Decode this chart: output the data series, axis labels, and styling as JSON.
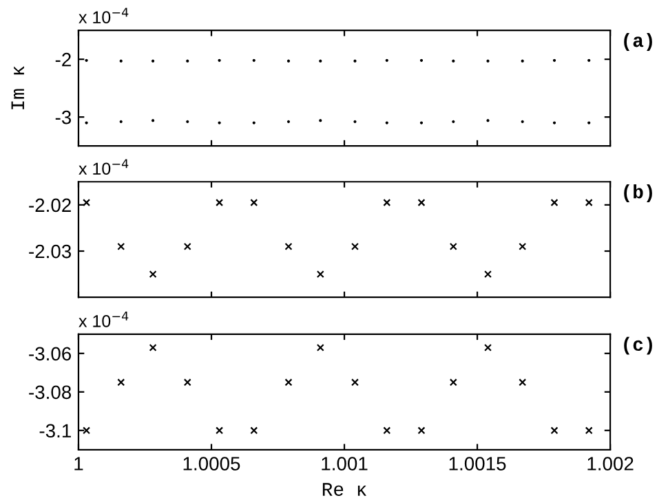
{
  "chart_data": [
    {
      "type": "scatter",
      "ylabel": "Im κ",
      "annotations": [
        "(a)",
        "x 10$^{−4}$"
      ],
      "marker": "circle",
      "tick_labels": "y",
      "grid": false,
      "legend": false,
      "x": [
        1.00003,
        1.00016,
        1.00028,
        1.00041,
        1.00053,
        1.00066,
        1.00079,
        1.00091,
        1.00104,
        1.00116,
        1.00129,
        1.00141,
        1.00154,
        1.00167,
        1.00179,
        1.00192
      ],
      "series": [
        {
          "color": "#000000",
          "values": [
            -2.02,
            -2.03,
            -2.03,
            -2.03,
            -2.02,
            -2.02,
            -2.03,
            -2.03,
            -2.03,
            -2.02,
            -2.02,
            -2.03,
            -2.03,
            -2.03,
            -2.02,
            -2.02
          ]
        },
        {
          "color": "#000000",
          "values": [
            -3.1,
            -3.08,
            -3.06,
            -3.08,
            -3.1,
            -3.1,
            -3.08,
            -3.06,
            -3.08,
            -3.1,
            -3.1,
            -3.08,
            -3.06,
            -3.08,
            -3.1,
            -3.1
          ]
        }
      ],
      "xlim": [
        1,
        1.002
      ],
      "xticks": [
        {
          "value": 1,
          "label": null
        },
        {
          "value": 1.0005,
          "label": null
        },
        {
          "value": 1.001,
          "label": null
        },
        {
          "value": 1.0015,
          "label": null
        },
        {
          "value": 1.002,
          "label": null
        }
      ],
      "ylim": [
        -3.5,
        -1.5
      ],
      "yticks": [
        -3,
        -2
      ]
    },
    {
      "type": "scatter",
      "annotations": [
        "(b)",
        "x 10$^{−4}$"
      ],
      "marker": "cross",
      "tick_labels": "y",
      "grid": false,
      "legend": false,
      "x": [
        1.00003,
        1.00016,
        1.00028,
        1.00041,
        1.00053,
        1.00066,
        1.00079,
        1.00091,
        1.00104,
        1.00116,
        1.00129,
        1.00141,
        1.00154,
        1.00167,
        1.00179,
        1.00192
      ],
      "series": [
        {
          "color": "#000000",
          "values": [
            -2.0195,
            -2.029,
            -2.035,
            -2.029,
            -2.0195,
            -2.0195,
            -2.029,
            -2.035,
            -2.029,
            -2.0195,
            -2.0195,
            -2.029,
            -2.035,
            -2.029,
            -2.0195,
            -2.0195
          ]
        }
      ],
      "xlim": [
        1,
        1.002
      ],
      "xticks": [
        {
          "value": 1,
          "label": null
        },
        {
          "value": 1.0005,
          "label": null
        },
        {
          "value": 1.001,
          "label": null
        },
        {
          "value": 1.0015,
          "label": null
        },
        {
          "value": 1.002,
          "label": null
        }
      ],
      "ylim": [
        -2.04,
        -2.015
      ],
      "yticks": [
        -2.03,
        -2.02
      ]
    },
    {
      "type": "scatter",
      "xlabel": "Re κ",
      "annotations": [
        "(c)",
        "x 10$^{−4}$"
      ],
      "marker": "cross",
      "grid": false,
      "legend": false,
      "x": [
        1.00003,
        1.00016,
        1.00028,
        1.00041,
        1.00053,
        1.00066,
        1.00079,
        1.00091,
        1.00104,
        1.00116,
        1.00129,
        1.00141,
        1.00154,
        1.00167,
        1.00179,
        1.00192
      ],
      "series": [
        {
          "color": "#000000",
          "values": [
            -3.1,
            -3.075,
            -3.057,
            -3.075,
            -3.1,
            -3.1,
            -3.075,
            -3.057,
            -3.075,
            -3.1,
            -3.1,
            -3.075,
            -3.057,
            -3.075,
            -3.1,
            -3.1
          ]
        }
      ],
      "xlim": [
        1,
        1.002
      ],
      "xticks": [
        1,
        1.0005,
        1.001,
        1.0015,
        1.002
      ],
      "ylim": [
        -3.11,
        -3.05
      ],
      "yticks": [
        -3.1,
        -3.08,
        -3.06
      ]
    }
  ]
}
